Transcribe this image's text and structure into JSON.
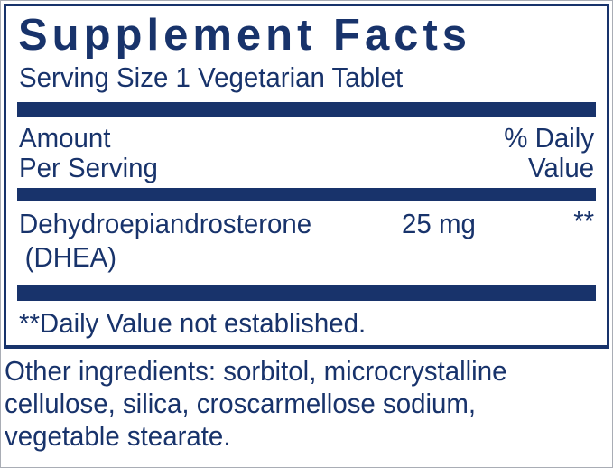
{
  "colors": {
    "navy": "#18336B",
    "background": "#FFFFFF"
  },
  "panel": {
    "title": "Supplement Facts",
    "serving_size": "Serving Size 1 Vegetarian Tablet",
    "columns": {
      "amount_label_lines": [
        "Amount",
        "Per Serving"
      ],
      "daily_value_label_lines": [
        "% Daily",
        "Value"
      ]
    },
    "rows": [
      {
        "ingredient_line1": "Dehydroepiandrosterone",
        "ingredient_line2": "(DHEA)",
        "amount": "25 mg",
        "daily_value": "**"
      }
    ],
    "footnote": "**Daily Value not established."
  },
  "other_ingredients": {
    "lines": [
      "Other ingredients: sorbitol, microcrystalline",
      "cellulose, silica, croscarmellose sodium,",
      "vegetable stearate."
    ],
    "full_text": "Other ingredients: sorbitol, microcrystalline cellulose, silica, croscarmellose sodium, vegetable stearate."
  }
}
